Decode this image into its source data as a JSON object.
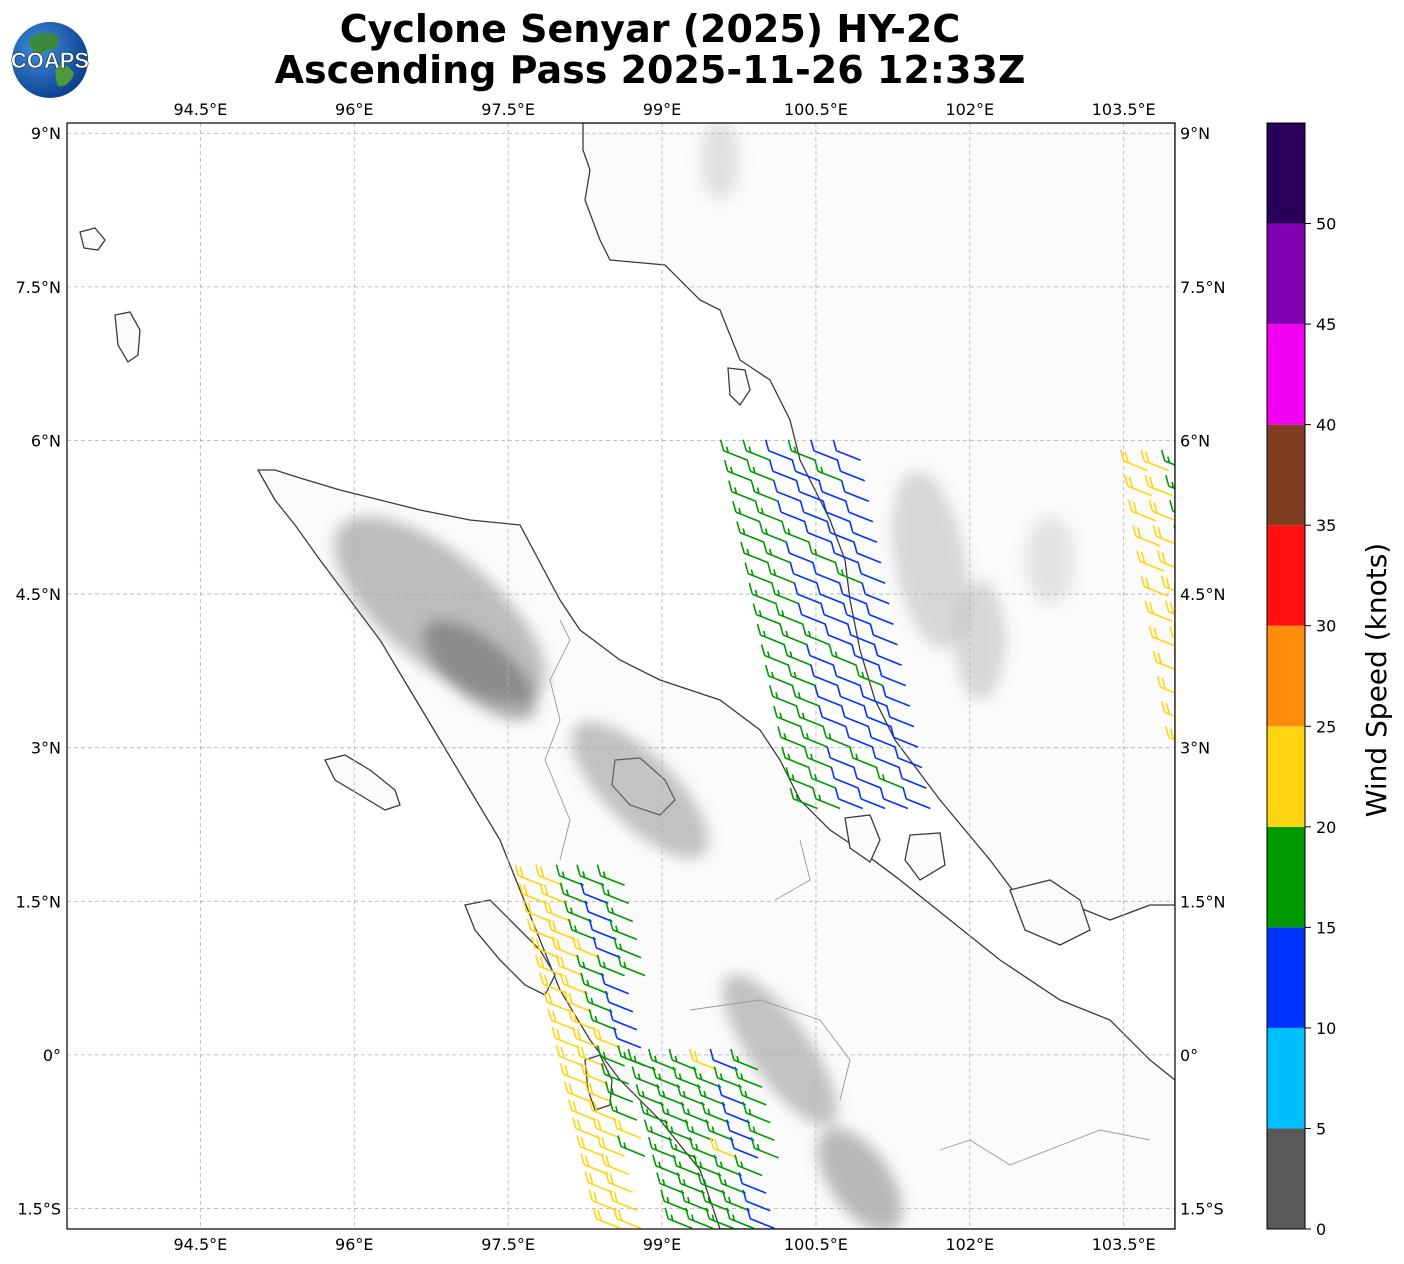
{
  "title_line1": "Cyclone Senyar (2025) HY-2C",
  "title_line2": "Ascending Pass 2025-11-26 12:33Z",
  "logo_text": "COAPS",
  "map": {
    "lon_ticks": [
      "94.5°E",
      "96°E",
      "97.5°E",
      "99°E",
      "100.5°E",
      "102°E",
      "103.5°E"
    ],
    "lat_ticks": [
      "9°N",
      "7.5°N",
      "6°N",
      "4.5°N",
      "3°N",
      "1.5°N",
      "0°",
      "1.5°S"
    ],
    "lon_values": [
      94.5,
      96,
      97.5,
      99,
      100.5,
      102,
      103.5
    ],
    "lat_values": [
      9,
      7.5,
      6,
      4.5,
      3,
      1.5,
      0,
      -1.5
    ],
    "extent": {
      "lon_min": 93.2,
      "lon_max": 104.0,
      "lat_min": -1.7,
      "lat_max": 9.1
    }
  },
  "colorbar": {
    "label": "Wind Speed (knots)",
    "ticks": [
      "0",
      "5",
      "10",
      "15",
      "20",
      "25",
      "30",
      "35",
      "40",
      "45",
      "50"
    ],
    "bins": [
      {
        "from": 0,
        "to": 5,
        "color": "#595959"
      },
      {
        "from": 5,
        "to": 10,
        "color": "#00bfff"
      },
      {
        "from": 10,
        "to": 15,
        "color": "#0033ff"
      },
      {
        "from": 15,
        "to": 20,
        "color": "#009900"
      },
      {
        "from": 20,
        "to": 25,
        "color": "#ffd511"
      },
      {
        "from": 25,
        "to": 30,
        "color": "#ff8c0a"
      },
      {
        "from": 30,
        "to": 35,
        "color": "#ff1010"
      },
      {
        "from": 35,
        "to": 40,
        "color": "#803d22"
      },
      {
        "from": 40,
        "to": 45,
        "color": "#f200f2"
      },
      {
        "from": 45,
        "to": 50,
        "color": "#8000b3"
      },
      {
        "from": 50,
        "to": 55,
        "color": "#290059"
      }
    ]
  },
  "wind_swaths": [
    {
      "name": "north-swath",
      "lat_start": 5.9,
      "lat_end": 2.5,
      "lon_start": 99.6,
      "lon_end": 101.0,
      "rows": 18,
      "cols": 6,
      "spacing_lon": 0.22,
      "dominant_speeds": [
        17,
        17,
        13,
        13,
        13,
        12
      ]
    },
    {
      "name": "south-swath-west",
      "lat_start": 1.75,
      "lat_end": -1.6,
      "lon_start": 97.6,
      "lon_end": 98.2,
      "rows": 20,
      "cols": 5,
      "spacing_lon": 0.2,
      "dominant_speeds": [
        22,
        22,
        18,
        13,
        17
      ]
    },
    {
      "name": "south-swath-east",
      "lat_start": -0.05,
      "lat_end": -1.6,
      "lon_start": 98.7,
      "lon_end": 99.5,
      "rows": 10,
      "cols": 6,
      "spacing_lon": 0.2,
      "dominant_speeds": [
        17,
        17,
        17,
        18,
        13,
        17
      ]
    },
    {
      "name": "east-edge-swath",
      "lat_start": 5.8,
      "lat_end": 3.1,
      "lon_start": 103.5,
      "lon_end": 104.0,
      "rows": 12,
      "cols": 3,
      "spacing_lon": 0.2,
      "dominant_speeds": [
        22,
        22,
        17
      ]
    }
  ]
}
